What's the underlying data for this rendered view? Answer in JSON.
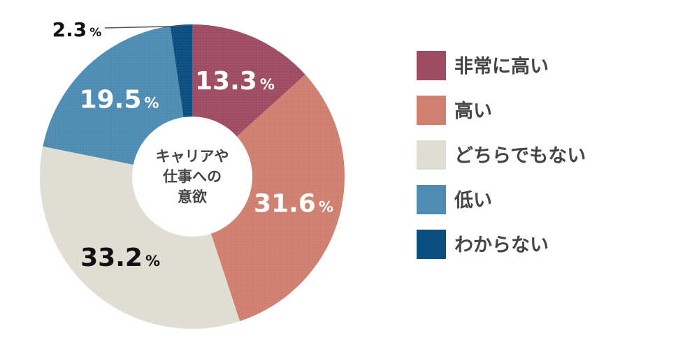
{
  "chart_data": {
    "type": "pie",
    "center_label": [
      "キャリアや",
      "仕事への",
      "意欲"
    ],
    "unit": "%",
    "categories": [
      "非常に高い",
      "高い",
      "どちらでもない",
      "低い",
      "わからない"
    ],
    "values": [
      13.3,
      31.6,
      33.2,
      19.5,
      2.3
    ],
    "value_labels": [
      "13.3",
      "31.6",
      "33.2",
      "19.5",
      "2.3"
    ],
    "colors": [
      "#9e4c64",
      "#cf8070",
      "#e0ddd3",
      "#4e8cb3",
      "#0b4e80"
    ],
    "label_colors": [
      "#ffffff",
      "#ffffff",
      "#111111",
      "#ffffff",
      "#111111"
    ],
    "legend_position": "right",
    "donut": true
  }
}
